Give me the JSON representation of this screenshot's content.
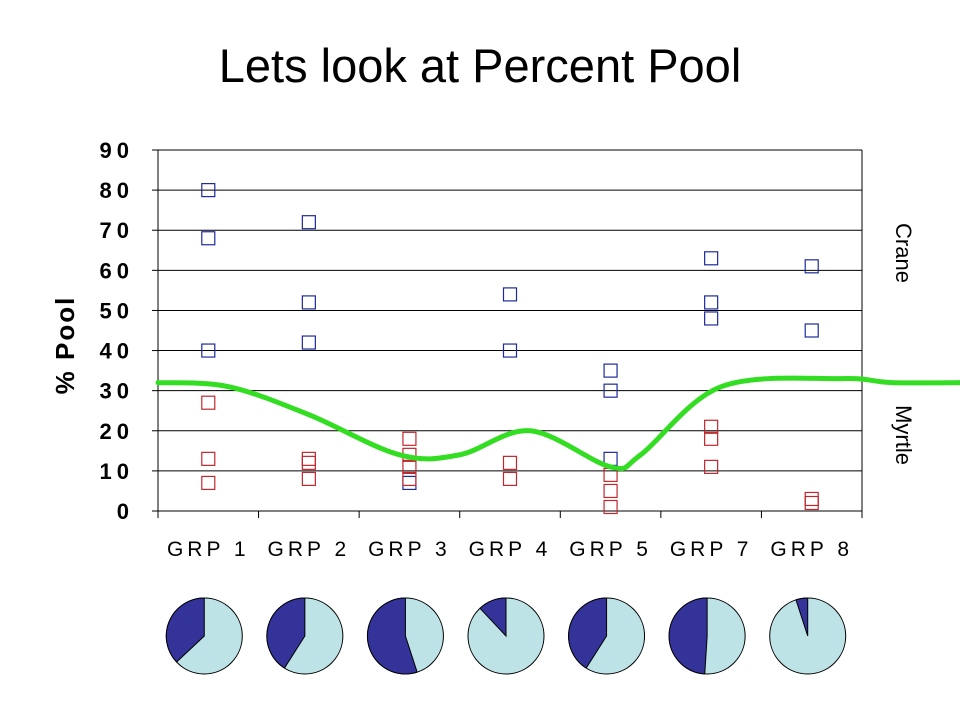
{
  "title": "Lets look at Percent Pool",
  "chart_data": {
    "type": "scatter",
    "title": "Lets look at Percent Pool",
    "ylabel": "% Pool",
    "ylim": [
      0,
      90
    ],
    "yticks": [
      "0",
      "10",
      "20",
      "30",
      "40",
      "50",
      "60",
      "70",
      "80",
      "90"
    ],
    "categories": [
      "GRP 1",
      "GRP 2",
      "GRP 3",
      "GRP 4",
      "GRP 5",
      "GRP 7",
      "GRP 8"
    ],
    "grid": "horizontal",
    "series": [
      {
        "name": "Crane",
        "color": "#1f2a9a",
        "marker": "hollow-square",
        "points": [
          [
            0,
            80
          ],
          [
            0,
            68
          ],
          [
            0,
            40
          ],
          [
            1,
            72
          ],
          [
            1,
            52
          ],
          [
            1,
            42
          ],
          [
            2,
            7
          ],
          [
            3,
            54
          ],
          [
            3,
            40
          ],
          [
            4,
            35
          ],
          [
            4,
            30
          ],
          [
            4,
            13
          ],
          [
            5,
            63
          ],
          [
            5,
            52
          ],
          [
            5,
            48
          ],
          [
            6,
            61
          ],
          [
            6,
            45
          ]
        ]
      },
      {
        "name": "Myrtle",
        "color": "#c0282d",
        "marker": "hollow-square",
        "points": [
          [
            0,
            27
          ],
          [
            0,
            13
          ],
          [
            0,
            7
          ],
          [
            1,
            13
          ],
          [
            1,
            12
          ],
          [
            1,
            8
          ],
          [
            2,
            18
          ],
          [
            2,
            14
          ],
          [
            2,
            11
          ],
          [
            2,
            8
          ],
          [
            3,
            12
          ],
          [
            3,
            8
          ],
          [
            4,
            9
          ],
          [
            4,
            5
          ],
          [
            4,
            1
          ],
          [
            5,
            21
          ],
          [
            5,
            18
          ],
          [
            5,
            11
          ],
          [
            6,
            3
          ],
          [
            6,
            2
          ]
        ]
      }
    ],
    "divider_curve": {
      "color": "#33dd22",
      "x": [
        -0.5,
        0.2,
        1.0,
        1.9,
        2.5,
        3.2,
        4.0,
        4.3,
        5.1,
        6.3,
        6.8,
        7.5
      ],
      "y": [
        32,
        31,
        24,
        14,
        14,
        20,
        11,
        14,
        31,
        33,
        32,
        32
      ]
    },
    "pies": [
      {
        "category": "GRP 1",
        "dark_fraction": 0.37
      },
      {
        "category": "GRP 2",
        "dark_fraction": 0.41
      },
      {
        "category": "GRP 3",
        "dark_fraction": 0.55
      },
      {
        "category": "GRP 4",
        "dark_fraction": 0.12
      },
      {
        "category": "GRP 5",
        "dark_fraction": 0.41
      },
      {
        "category": "GRP 7",
        "dark_fraction": 0.49
      },
      {
        "category": "GRP 8",
        "dark_fraction": 0.05
      }
    ],
    "pie_colors": {
      "dark": "#333399",
      "light": "#bde3e6",
      "outline": "#000000"
    },
    "side_labels": {
      "upper": "Crane",
      "lower": "Myrtle"
    }
  }
}
